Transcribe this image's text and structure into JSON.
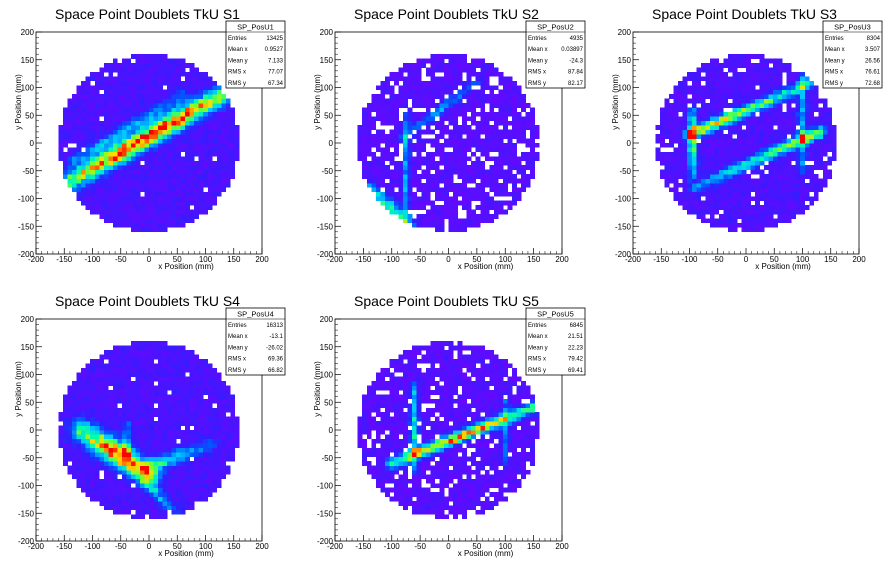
{
  "chart_data": [
    {
      "type": "heatmap",
      "title": "Space Point Doublets TkU S1",
      "xlabel": "x Position (mm)",
      "ylabel": "y Position (mm)",
      "xlim": [
        -200,
        200
      ],
      "ylim": [
        -200,
        200
      ],
      "xticks": [
        -200,
        -150,
        -100,
        -50,
        0,
        50,
        100,
        150,
        200
      ],
      "yticks": [
        -200,
        -150,
        -100,
        -50,
        0,
        50,
        100,
        150,
        200
      ],
      "stats": {
        "name": "SP_PosU1",
        "rows": [
          {
            "label": "Entries",
            "value": "13425"
          },
          {
            "label": "Mean x",
            "value": "0.9527"
          },
          {
            "label": "Mean y",
            "value": "7.133"
          },
          {
            "label": "RMS x",
            "value": "77.07"
          },
          {
            "label": "RMS y",
            "value": "67.34"
          }
        ]
      },
      "acceptance_radius": 160,
      "background_level": 0.08,
      "hot_bands": [
        {
          "x1": -150,
          "y1": -75,
          "x2": 160,
          "y2": 105,
          "peak": 0.95,
          "width": 12,
          "peak_at": 0.5
        },
        {
          "x1": -130,
          "y1": -30,
          "x2": 60,
          "y2": 85,
          "peak": 0.3,
          "width": 8,
          "peak_at": 0.5
        }
      ],
      "empty_fraction": 0.03
    },
    {
      "type": "heatmap",
      "title": "Space Point Doublets TkU S2",
      "xlabel": "x Position (mm)",
      "ylabel": "y Position (mm)",
      "xlim": [
        -200,
        200
      ],
      "ylim": [
        -200,
        200
      ],
      "xticks": [
        -200,
        -150,
        -100,
        -50,
        0,
        50,
        100,
        150,
        200
      ],
      "yticks": [
        -200,
        -150,
        -100,
        -50,
        0,
        50,
        100,
        150,
        200
      ],
      "stats": {
        "name": "SP_PosU2",
        "rows": [
          {
            "label": "Entries",
            "value": "4935"
          },
          {
            "label": "Mean x",
            "value": "0.03897"
          },
          {
            "label": "Mean y",
            "value": "-24.3"
          },
          {
            "label": "RMS x",
            "value": "87.84"
          },
          {
            "label": "RMS y",
            "value": "82.17"
          }
        ]
      },
      "acceptance_radius": 160,
      "background_level": 0.05,
      "hot_bands": [
        {
          "x1": -140,
          "y1": -80,
          "x2": -70,
          "y2": -150,
          "peak": 0.55,
          "width": 9,
          "peak_at": 0.6
        },
        {
          "x1": -75,
          "y1": 60,
          "x2": -75,
          "y2": -140,
          "peak": 0.35,
          "width": 5,
          "peak_at": 0.5
        },
        {
          "x1": -80,
          "y1": 10,
          "x2": 50,
          "y2": 110,
          "peak": 0.3,
          "width": 6,
          "peak_at": 0.5
        }
      ],
      "empty_fraction": 0.16
    },
    {
      "type": "heatmap",
      "title": "Space Point Doublets TkU S3",
      "xlabel": "x Position (mm)",
      "ylabel": "y Position (mm)",
      "xlim": [
        -200,
        200
      ],
      "ylim": [
        -200,
        200
      ],
      "xticks": [
        -200,
        -150,
        -100,
        -50,
        0,
        50,
        100,
        150,
        200
      ],
      "yticks": [
        -200,
        -150,
        -100,
        -50,
        0,
        50,
        100,
        150,
        200
      ],
      "stats": {
        "name": "SP_PosU3",
        "rows": [
          {
            "label": "Entries",
            "value": "8304"
          },
          {
            "label": "Mean x",
            "value": "3.507"
          },
          {
            "label": "Mean y",
            "value": "26.56"
          },
          {
            "label": "RMS x",
            "value": "76.61"
          },
          {
            "label": "RMS y",
            "value": "72.68"
          }
        ]
      },
      "acceptance_radius": 160,
      "background_level": 0.07,
      "hot_bands": [
        {
          "x1": -100,
          "y1": 15,
          "x2": 140,
          "y2": 120,
          "peak": 0.75,
          "width": 7,
          "peak_at": 0.2
        },
        {
          "x1": -90,
          "y1": -80,
          "x2": 130,
          "y2": 20,
          "peak": 0.65,
          "width": 7,
          "peak_at": 0.8
        },
        {
          "x1": -95,
          "y1": 60,
          "x2": -95,
          "y2": -60,
          "peak": 0.55,
          "width": 5,
          "peak_at": 0.5
        },
        {
          "x1": 100,
          "y1": 120,
          "x2": 100,
          "y2": -50,
          "peak": 0.35,
          "width": 5,
          "peak_at": 0.5
        }
      ],
      "empty_fraction": 0.06
    },
    {
      "type": "heatmap",
      "title": "Space Point Doublets TkU S4",
      "xlabel": "x Position (mm)",
      "ylabel": "y Position (mm)",
      "xlim": [
        -200,
        200
      ],
      "ylim": [
        -200,
        200
      ],
      "xticks": [
        -200,
        -150,
        -100,
        -50,
        0,
        50,
        100,
        150,
        200
      ],
      "yticks": [
        -200,
        -150,
        -100,
        -50,
        0,
        50,
        100,
        150,
        200
      ],
      "stats": {
        "name": "SP_PosU4",
        "rows": [
          {
            "label": "Entries",
            "value": "16313"
          },
          {
            "label": "Mean x",
            "value": "-13.1"
          },
          {
            "label": "Mean y",
            "value": "-26.02"
          },
          {
            "label": "RMS x",
            "value": "69.36"
          },
          {
            "label": "RMS y",
            "value": "66.82"
          }
        ]
      },
      "acceptance_radius": 160,
      "background_level": 0.08,
      "hot_bands": [
        {
          "x1": -120,
          "y1": 0,
          "x2": 0,
          "y2": -80,
          "peak": 0.9,
          "width": 14,
          "peak_at": 0.55
        },
        {
          "x1": -10,
          "y1": -70,
          "x2": 110,
          "y2": -25,
          "peak": 0.45,
          "width": 8,
          "peak_at": 0.3
        },
        {
          "x1": -10,
          "y1": -90,
          "x2": 50,
          "y2": -150,
          "peak": 0.35,
          "width": 7,
          "peak_at": 0.3
        },
        {
          "x1": -40,
          "y1": 10,
          "x2": -40,
          "y2": -60,
          "peak": 0.3,
          "width": 6,
          "peak_at": 0.5
        }
      ],
      "empty_fraction": 0.03
    },
    {
      "type": "heatmap",
      "title": "Space Point Doublets TkU S5",
      "xlabel": "x Position (mm)",
      "ylabel": "y Position (mm)",
      "xlim": [
        -200,
        200
      ],
      "ylim": [
        -200,
        200
      ],
      "xticks": [
        -200,
        -150,
        -100,
        -50,
        0,
        50,
        100,
        150,
        200
      ],
      "yticks": [
        -200,
        -150,
        -100,
        -50,
        0,
        50,
        100,
        150,
        200
      ],
      "stats": {
        "name": "SP_PosU5",
        "rows": [
          {
            "label": "Entries",
            "value": "6845"
          },
          {
            "label": "Mean x",
            "value": "21.51"
          },
          {
            "label": "Mean y",
            "value": "22.23"
          },
          {
            "label": "RMS x",
            "value": "79.42"
          },
          {
            "label": "RMS y",
            "value": "69.41"
          }
        ]
      },
      "acceptance_radius": 160,
      "background_level": 0.05,
      "hot_bands": [
        {
          "x1": -100,
          "y1": -60,
          "x2": 160,
          "y2": 45,
          "peak": 0.85,
          "width": 7,
          "peak_at": 0.45
        },
        {
          "x1": -60,
          "y1": 80,
          "x2": -60,
          "y2": -70,
          "peak": 0.45,
          "width": 5,
          "peak_at": 0.5
        },
        {
          "x1": 100,
          "y1": 60,
          "x2": 100,
          "y2": -60,
          "peak": 0.3,
          "width": 5,
          "peak_at": 0.5
        }
      ],
      "empty_fraction": 0.13
    }
  ]
}
